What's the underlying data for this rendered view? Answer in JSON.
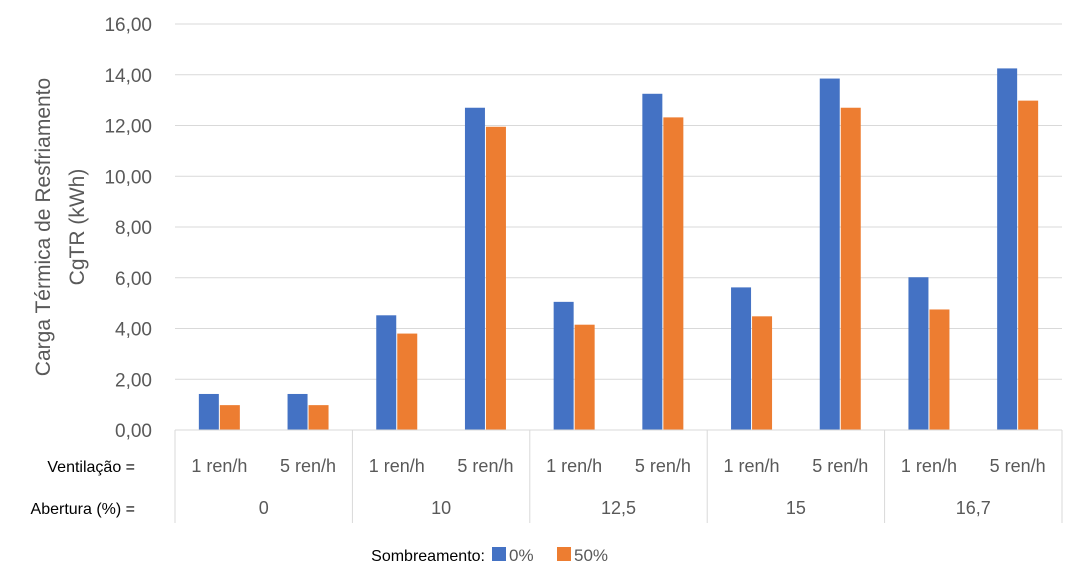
{
  "chart_data": {
    "type": "bar",
    "ylabel_line1": "Carga Térmica de Resfriamento",
    "ylabel_line2": "CgTR (kWh)",
    "ylim": [
      0,
      16
    ],
    "yticks": [
      "0,00",
      "2,00",
      "4,00",
      "6,00",
      "8,00",
      "10,00",
      "12,00",
      "14,00",
      "16,00"
    ],
    "ventilation_label": "Ventilação =",
    "aperture_label": "Abertura (%) =",
    "groups": [
      {
        "aperture": "0",
        "items": [
          {
            "ventilation": "1 ren/h",
            "values": [
              1.42,
              0.98
            ]
          },
          {
            "ventilation": "5 ren/h",
            "values": [
              1.42,
              0.98
            ]
          }
        ]
      },
      {
        "aperture": "10",
        "items": [
          {
            "ventilation": "1 ren/h",
            "values": [
              4.52,
              3.8
            ]
          },
          {
            "ventilation": "5 ren/h",
            "values": [
              12.7,
              11.95
            ]
          }
        ]
      },
      {
        "aperture": "12,5",
        "items": [
          {
            "ventilation": "1 ren/h",
            "values": [
              5.05,
              4.15
            ]
          },
          {
            "ventilation": "5 ren/h",
            "values": [
              13.25,
              12.32
            ]
          }
        ]
      },
      {
        "aperture": "15",
        "items": [
          {
            "ventilation": "1 ren/h",
            "values": [
              5.62,
              4.48
            ]
          },
          {
            "ventilation": "5 ren/h",
            "values": [
              13.85,
              12.7
            ]
          }
        ]
      },
      {
        "aperture": "16,7",
        "items": [
          {
            "ventilation": "1 ren/h",
            "values": [
              6.02,
              4.75
            ]
          },
          {
            "ventilation": "5 ren/h",
            "values": [
              14.25,
              12.98
            ]
          }
        ]
      }
    ],
    "series": [
      {
        "name": "0%",
        "color": "#4472C4"
      },
      {
        "name": "50%",
        "color": "#ED7D31"
      }
    ],
    "legend_title": "Sombreamento:",
    "legend_position": "bottom-center",
    "grid": true
  }
}
